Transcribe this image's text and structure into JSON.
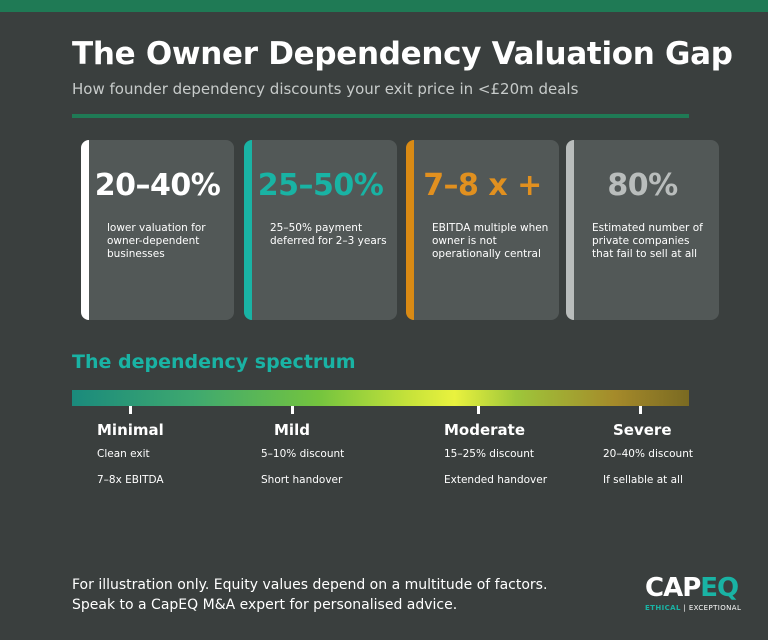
{
  "header": {
    "title": "The Owner Dependency Valuation Gap",
    "subtitle": "How founder dependency discounts your exit price in <£20m deals"
  },
  "stats": [
    {
      "value": "20–40%",
      "description": "lower valuation for owner-dependent businesses",
      "color": "#ffffff",
      "accent": "#ffffff"
    },
    {
      "value": "25–50%",
      "description": "25–50% payment deferred for 2–3 years",
      "color": "#19b3a4",
      "accent": "#19b3a4"
    },
    {
      "value": "7–8 x +",
      "description": "EBITDA multiple when owner is not operationally central",
      "color": "#e1901f",
      "accent": "#d98a14"
    },
    {
      "value": "80%",
      "description": "Estimated number of private companies that fail to sell at all",
      "color": "#b9bdbc",
      "accent": "#b9bdbc"
    }
  ],
  "spectrum": {
    "title": "The dependency spectrum",
    "levels": [
      {
        "name": "Minimal",
        "line1": "Clean exit",
        "line2": "7–8x EBITDA"
      },
      {
        "name": "Mild",
        "line1": "5–10% discount",
        "line2": "Short handover"
      },
      {
        "name": "Moderate",
        "line1": "15–25% discount",
        "line2": "Extended handover"
      },
      {
        "name": "Severe",
        "line1": "20–40% discount",
        "line2": "If sellable at all"
      }
    ]
  },
  "footer": {
    "line1": "For illustration only. Equity values depend on a multitude of factors.",
    "line2": "Speak to a CapEQ M&A expert for personalised advice."
  },
  "logo": {
    "word_cap": "CAP",
    "word_eq": "EQ",
    "tag_left": "ETHICAL",
    "tag_sep": " | ",
    "tag_right": "EXCEPTIONAL"
  },
  "colors": {
    "background": "#3a3f3e",
    "brand_green": "#1f7a55",
    "teal": "#19b3a4",
    "amber": "#d98a14",
    "card": "#525857"
  }
}
